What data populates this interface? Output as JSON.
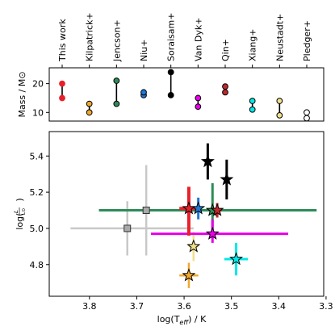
{
  "chart_data": [
    {
      "type": "range-dots",
      "ylabel": "Mass / M⊙",
      "yticks": [
        10,
        20
      ],
      "ylim": [
        7,
        25.5
      ],
      "categories": [
        "This work",
        "Kilpatrick+",
        "Jencson+",
        "Niu+",
        "Soraisam+",
        "Van Dyk+",
        "Qin+",
        "Xiang+",
        "Neustadt+",
        "Pledger+"
      ],
      "series": [
        {
          "low": 15,
          "high": 20,
          "color": "#e8202a",
          "edge": "#e8202a",
          "linecolor": "#000000"
        },
        {
          "low": 10,
          "high": 13,
          "color": "#f0a830",
          "edge": "#000000",
          "linecolor": "#000000"
        },
        {
          "low": 13,
          "high": 21,
          "color": "#2e8b57",
          "edge": "#000000",
          "linecolor": "#000000"
        },
        {
          "low": 16,
          "high": 17,
          "color": "#1f77d4",
          "edge": "#000000",
          "linecolor": "#000000"
        },
        {
          "low": 16,
          "high": 24,
          "color": "#000000",
          "edge": "#000000",
          "linecolor": "#000000"
        },
        {
          "low": 12,
          "high": 15,
          "color": "#e800e8",
          "edge": "#000000",
          "linecolor": "#000000"
        },
        {
          "low": 17,
          "high": 19,
          "color": "#c0282a",
          "edge": "#000000",
          "linecolor": "#000000"
        },
        {
          "low": 11,
          "high": 14,
          "color": "#00e8e8",
          "edge": "#000000",
          "linecolor": "#000000"
        },
        {
          "low": 9,
          "high": 14,
          "color": "#f0e08a",
          "edge": "#000000",
          "linecolor": "#000000"
        },
        {
          "low": 8,
          "high": 10,
          "color": "#ffffff",
          "edge": "#000000",
          "linecolor": "#000000"
        }
      ]
    },
    {
      "type": "scatter",
      "xlabel": "log(T",
      "xlabel_sub": "eff",
      "xlabel_unit": ") / K",
      "ylabel": "log(",
      "ylabel_frac_num": "L",
      "ylabel_frac_den": "L⊙",
      "ylabel_close": ")",
      "xlim": [
        3.885,
        3.305
      ],
      "ylim": [
        4.625,
        5.535
      ],
      "xticks": [
        3.8,
        3.7,
        3.6,
        3.5,
        3.4,
        3.3
      ],
      "xtick_labels": [
        "3.8",
        "3.7",
        "3.6",
        "3.5",
        "3.4",
        "3.3"
      ],
      "yticks": [
        4.8,
        5.0,
        5.2,
        5.4
      ],
      "ytick_labels": [
        "4.8",
        "5.0",
        "5.2",
        "5.4"
      ],
      "points": [
        {
          "name": "Pledger+ A",
          "x": 3.72,
          "y": 5.0,
          "xerr": [
            0.12,
            0.14
          ],
          "yerr": [
            0.15,
            0.15
          ],
          "marker": "square",
          "color": "#a9a9a9",
          "errcolor": "#c8c8c8",
          "lw": 2.5
        },
        {
          "name": "Pledger+ B",
          "x": 3.68,
          "y": 5.1,
          "xerr": [
            0.06,
            0.06
          ],
          "yerr": [
            0.25,
            0.25
          ],
          "marker": "square",
          "color": "#a9a9a9",
          "errcolor": "#c8c8c8",
          "lw": 2.5
        },
        {
          "name": "Neustadt+",
          "x": 3.58,
          "y": 4.9,
          "xerr": [
            0.01,
            0.01
          ],
          "yerr": [
            0.08,
            0.08
          ],
          "marker": "star",
          "color": "#f0e08a",
          "errcolor": "#f0e08a",
          "lw": 2.5
        },
        {
          "name": "Kilpatrick+",
          "x": 3.59,
          "y": 4.74,
          "xerr": [
            0.02,
            0.02
          ],
          "yerr": [
            0.07,
            0.07
          ],
          "marker": "star",
          "color": "#f0a830",
          "errcolor": "#f0a830",
          "lw": 2.5
        },
        {
          "name": "Jencson+",
          "x": 3.54,
          "y": 5.1,
          "xerr": [
            0.24,
            0.22
          ],
          "yerr": [
            0.15,
            0.15
          ],
          "marker": "star",
          "color": "#2e8b57",
          "errcolor": "#2e8b57",
          "lw": 3
        },
        {
          "name": "Van Dyk+",
          "x": 3.54,
          "y": 4.97,
          "xerr": [
            0.13,
            0.16
          ],
          "yerr": [
            0.05,
            0.08
          ],
          "marker": "star",
          "color": "#e800e8",
          "errcolor": "#e800e8",
          "lw": 3
        },
        {
          "name": "Xiang+",
          "x": 3.49,
          "y": 4.83,
          "xerr": [
            0.025,
            0.025
          ],
          "yerr": [
            0.09,
            0.09
          ],
          "marker": "star",
          "color": "#00e8e8",
          "errcolor": "#00e8e8",
          "lw": 3
        },
        {
          "name": "Niu+",
          "x": 3.57,
          "y": 5.11,
          "xerr": [
            0.0,
            0.0
          ],
          "yerr": [
            0.06,
            0.06
          ],
          "marker": "star",
          "color": "#1f77d4",
          "errcolor": "#1f77d4",
          "lw": 3
        },
        {
          "name": "Soraisam+ A",
          "x": 3.55,
          "y": 5.37,
          "xerr": [
            0.0,
            0.0
          ],
          "yerr": [
            0.1,
            0.1
          ],
          "marker": "star",
          "color": "#000000",
          "errcolor": "#000000",
          "lw": 3
        },
        {
          "name": "Soraisam+ B",
          "x": 3.51,
          "y": 5.27,
          "xerr": [
            0.0,
            0.0
          ],
          "yerr": [
            0.11,
            0.11
          ],
          "marker": "star",
          "color": "#000000",
          "errcolor": "#000000",
          "lw": 3
        },
        {
          "name": "Qin+",
          "x": 3.53,
          "y": 5.1,
          "xerr": [
            0.01,
            0.01
          ],
          "yerr": [
            0.04,
            0.04
          ],
          "marker": "star",
          "color": "#c0282a",
          "errcolor": "#c0282a",
          "lw": 3
        },
        {
          "name": "This work",
          "x": 3.59,
          "y": 5.11,
          "xerr": [
            0.02,
            0.02
          ],
          "yerr": [
            0.15,
            0.12
          ],
          "marker": "star",
          "color": "#e8202a",
          "errcolor": "#e8202a",
          "lw": 4
        }
      ]
    }
  ]
}
